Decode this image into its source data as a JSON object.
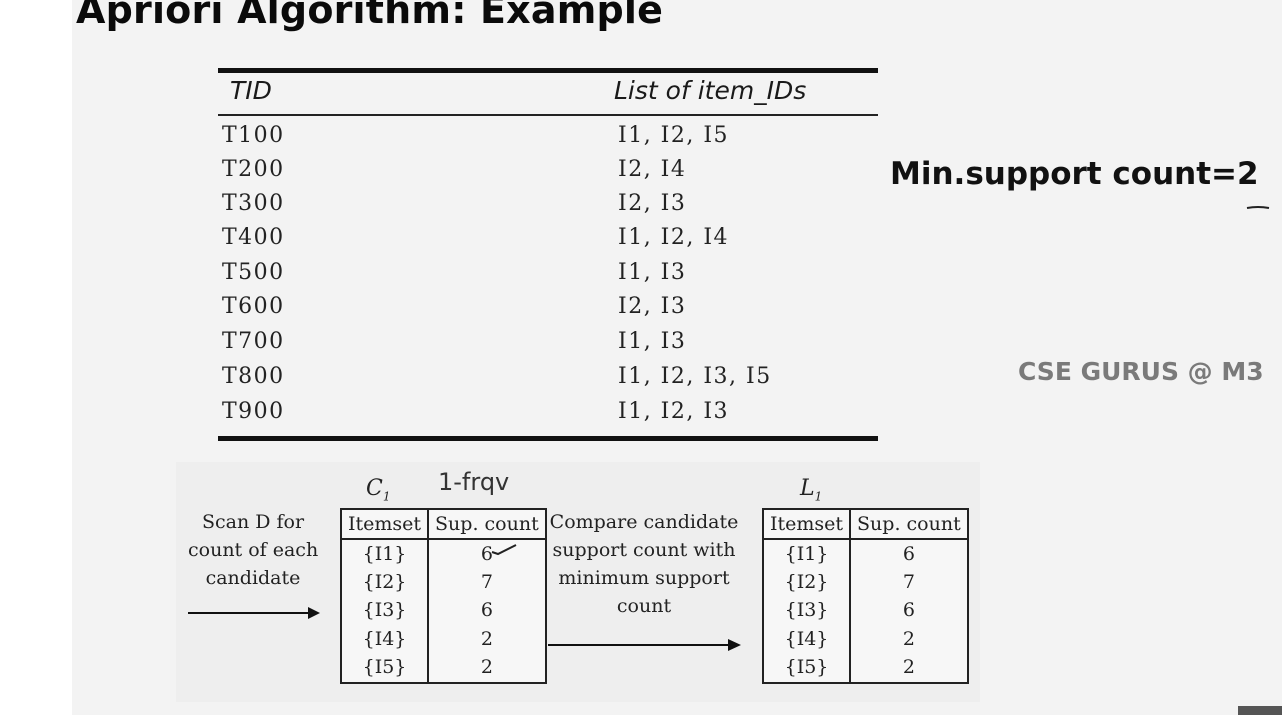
{
  "title": "Apriori Algorithm: Example",
  "transactions": {
    "headers": {
      "tid": "TID",
      "items": "List of item_IDs"
    },
    "rows": [
      {
        "tid": "T100",
        "items": "I1, I2, I5"
      },
      {
        "tid": "T200",
        "items": "I2, I4"
      },
      {
        "tid": "T300",
        "items": "I2, I3"
      },
      {
        "tid": "T400",
        "items": "I1, I2, I4"
      },
      {
        "tid": "T500",
        "items": "I1, I3"
      },
      {
        "tid": "T600",
        "items": "I2, I3"
      },
      {
        "tid": "T700",
        "items": "I1, I3"
      },
      {
        "tid": "T800",
        "items": "I1, I2, I3, I5"
      },
      {
        "tid": "T900",
        "items": "I1, I2, I3"
      }
    ]
  },
  "min_support": "Min.support count=2",
  "watermark": "CSE GURUS @ M3",
  "scan_caption": [
    "Scan D for",
    "count of each",
    "candidate"
  ],
  "compare_caption": [
    "Compare candidate",
    "support count with",
    "minimum support",
    "count"
  ],
  "annotation": "1-frqv",
  "c1": {
    "label": "C",
    "label_sub": "1",
    "headers": {
      "itemset": "Itemset",
      "count": "Sup. count"
    },
    "rows": [
      {
        "itemset": "{I1}",
        "count": "6"
      },
      {
        "itemset": "{I2}",
        "count": "7"
      },
      {
        "itemset": "{I3}",
        "count": "6"
      },
      {
        "itemset": "{I4}",
        "count": "2"
      },
      {
        "itemset": "{I5}",
        "count": "2"
      }
    ]
  },
  "l1": {
    "label": "L",
    "label_sub": "1",
    "headers": {
      "itemset": "Itemset",
      "count": "Sup. count"
    },
    "rows": [
      {
        "itemset": "{I1}",
        "count": "6"
      },
      {
        "itemset": "{I2}",
        "count": "7"
      },
      {
        "itemset": "{I3}",
        "count": "6"
      },
      {
        "itemset": "{I4}",
        "count": "2"
      },
      {
        "itemset": "{I5}",
        "count": "2"
      }
    ]
  },
  "icons": {
    "arrow": "right-arrow-icon",
    "check": "checkmark-icon"
  }
}
